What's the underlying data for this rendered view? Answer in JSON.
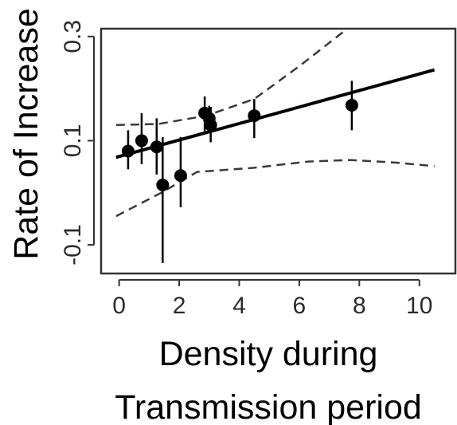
{
  "chart_data": {
    "type": "scatter",
    "xlabel": [
      "Density during",
      "Transmission period"
    ],
    "ylabel": "Rate of Increase",
    "xlim": [
      -0.6,
      11.2
    ],
    "ylim": [
      -0.155,
      0.315
    ],
    "x_ticks": [
      0,
      2,
      4,
      6,
      8,
      10
    ],
    "x_tick_labels": [
      "0",
      "2",
      "4",
      "6",
      "8",
      "10"
    ],
    "y_ticks": [
      -0.1,
      0.1,
      0.3
    ],
    "y_tick_labels": [
      "-0.1",
      "0.1",
      "0.3"
    ],
    "grid": false,
    "legend": "none",
    "points": [
      {
        "x": 0.3,
        "y": 0.08,
        "lo": 0.045,
        "hi": 0.12
      },
      {
        "x": 0.75,
        "y": 0.1,
        "lo": 0.055,
        "hi": 0.153
      },
      {
        "x": 1.25,
        "y": 0.088,
        "lo": 0.035,
        "hi": 0.143
      },
      {
        "x": 1.45,
        "y": 0.015,
        "lo": -0.135,
        "hi": 0.107
      },
      {
        "x": 2.05,
        "y": 0.033,
        "lo": -0.028,
        "hi": 0.107
      },
      {
        "x": 2.85,
        "y": 0.153,
        "lo": 0.118,
        "hi": 0.185
      },
      {
        "x": 3.0,
        "y": 0.143,
        "lo": 0.117,
        "hi": 0.167
      },
      {
        "x": 3.05,
        "y": 0.13,
        "lo": 0.097,
        "hi": 0.165
      },
      {
        "x": 4.5,
        "y": 0.148,
        "lo": 0.105,
        "hi": 0.18
      },
      {
        "x": 7.75,
        "y": 0.168,
        "lo": 0.12,
        "hi": 0.215
      }
    ],
    "fit_line": {
      "x": [
        -0.1,
        10.5
      ],
      "y": [
        0.068,
        0.236
      ]
    },
    "upper_band": {
      "x": [
        -0.1,
        1.3,
        2.9,
        4.5,
        6.0,
        7.6
      ],
      "y": [
        0.13,
        0.132,
        0.148,
        0.18,
        0.243,
        0.315
      ]
    },
    "lower_band": {
      "x": [
        -0.1,
        1.4,
        2.6,
        4.5,
        6.3,
        7.7,
        9.2,
        10.5
      ],
      "y": [
        -0.045,
        0.0,
        0.04,
        0.048,
        0.06,
        0.063,
        0.058,
        0.051
      ]
    },
    "colors": {
      "points": "#000000",
      "fit": "#000000",
      "band": "#3a3a3a",
      "axis": "#333333"
    }
  }
}
